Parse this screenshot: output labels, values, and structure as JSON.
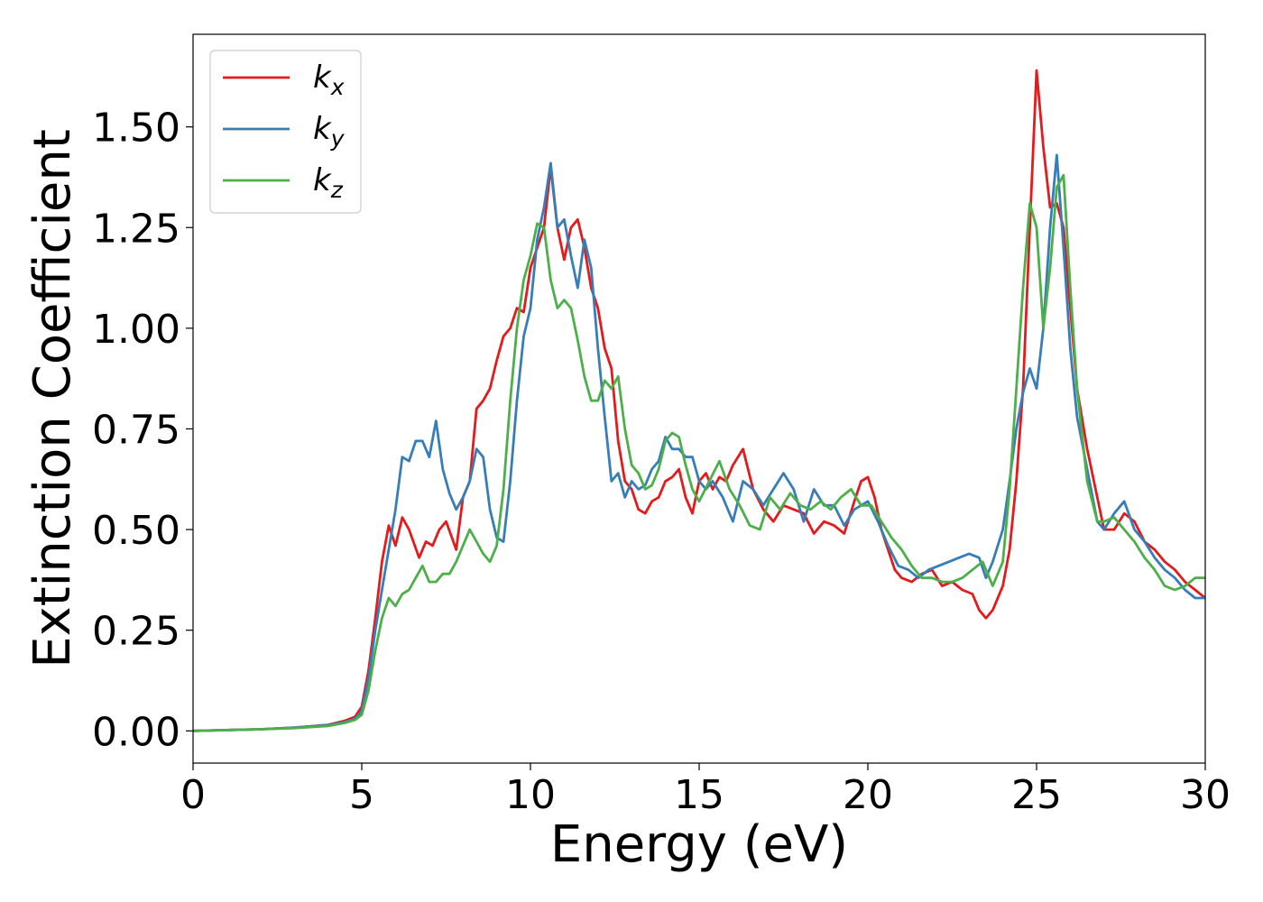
{
  "chart_data": {
    "type": "line",
    "xlabel": "Energy (eV)",
    "ylabel": "Extinction Coefficient",
    "xlim": [
      0,
      30
    ],
    "ylim": [
      -0.08,
      1.73
    ],
    "xticks": [
      0,
      5,
      10,
      15,
      20,
      25,
      30
    ],
    "xtick_labels": [
      "0",
      "5",
      "10",
      "15",
      "20",
      "25",
      "30"
    ],
    "yticks": [
      0.0,
      0.25,
      0.5,
      0.75,
      1.0,
      1.25,
      1.5
    ],
    "ytick_labels": [
      "0.00",
      "0.25",
      "0.50",
      "0.75",
      "1.00",
      "1.25",
      "1.50"
    ],
    "grid": false,
    "legend_position": "top-left",
    "series": [
      {
        "name": "k",
        "subscript": "x",
        "color": "#e41a1c",
        "x": [
          0,
          1,
          2,
          3,
          4,
          4.5,
          4.8,
          5.0,
          5.2,
          5.4,
          5.6,
          5.8,
          6.0,
          6.2,
          6.4,
          6.7,
          6.9,
          7.1,
          7.3,
          7.5,
          7.8,
          8.0,
          8.2,
          8.4,
          8.6,
          8.8,
          9.0,
          9.2,
          9.4,
          9.6,
          9.8,
          10.0,
          10.2,
          10.4,
          10.6,
          10.8,
          11.0,
          11.2,
          11.4,
          11.6,
          11.8,
          12.0,
          12.2,
          12.4,
          12.6,
          12.8,
          13.0,
          13.2,
          13.4,
          13.6,
          13.8,
          14.0,
          14.2,
          14.4,
          14.6,
          14.8,
          15.0,
          15.2,
          15.4,
          15.6,
          15.8,
          16.0,
          16.3,
          16.6,
          16.9,
          17.2,
          17.5,
          17.8,
          18.1,
          18.4,
          18.7,
          19.0,
          19.3,
          19.6,
          19.8,
          20.0,
          20.2,
          20.4,
          20.6,
          20.8,
          21.0,
          21.3,
          21.6,
          21.9,
          22.2,
          22.5,
          22.8,
          23.1,
          23.3,
          23.5,
          23.7,
          24.0,
          24.2,
          24.4,
          24.6,
          24.8,
          25.0,
          25.2,
          25.4,
          25.6,
          25.8,
          26.0,
          26.2,
          26.5,
          26.8,
          27.0,
          27.3,
          27.6,
          27.9,
          28.2,
          28.5,
          28.8,
          29.1,
          29.4,
          29.7,
          30.0
        ],
        "values": [
          0.0,
          0.002,
          0.004,
          0.008,
          0.015,
          0.025,
          0.035,
          0.06,
          0.15,
          0.28,
          0.42,
          0.51,
          0.46,
          0.53,
          0.5,
          0.43,
          0.47,
          0.46,
          0.5,
          0.52,
          0.45,
          0.58,
          0.62,
          0.8,
          0.82,
          0.85,
          0.92,
          0.98,
          1.0,
          1.05,
          1.04,
          1.15,
          1.2,
          1.25,
          1.4,
          1.25,
          1.17,
          1.25,
          1.27,
          1.2,
          1.1,
          1.05,
          0.95,
          0.9,
          0.72,
          0.62,
          0.6,
          0.55,
          0.54,
          0.57,
          0.58,
          0.62,
          0.63,
          0.65,
          0.58,
          0.54,
          0.62,
          0.64,
          0.6,
          0.63,
          0.62,
          0.66,
          0.7,
          0.6,
          0.55,
          0.52,
          0.56,
          0.55,
          0.54,
          0.49,
          0.52,
          0.51,
          0.49,
          0.57,
          0.62,
          0.63,
          0.58,
          0.5,
          0.45,
          0.4,
          0.38,
          0.37,
          0.39,
          0.4,
          0.36,
          0.37,
          0.35,
          0.34,
          0.3,
          0.28,
          0.3,
          0.36,
          0.45,
          0.62,
          0.85,
          1.25,
          1.64,
          1.45,
          1.3,
          1.31,
          1.25,
          1.05,
          0.85,
          0.7,
          0.58,
          0.5,
          0.5,
          0.54,
          0.52,
          0.47,
          0.45,
          0.42,
          0.4,
          0.37,
          0.35,
          0.33
        ]
      },
      {
        "name": "k",
        "subscript": "y",
        "color": "#377eb8",
        "x": [
          0,
          1,
          2,
          3,
          4,
          4.5,
          4.8,
          5.0,
          5.2,
          5.4,
          5.6,
          5.8,
          6.0,
          6.2,
          6.4,
          6.6,
          6.8,
          7.0,
          7.2,
          7.4,
          7.6,
          7.8,
          8.0,
          8.2,
          8.4,
          8.6,
          8.8,
          9.0,
          9.2,
          9.4,
          9.6,
          9.8,
          10.0,
          10.2,
          10.4,
          10.6,
          10.8,
          11.0,
          11.2,
          11.4,
          11.6,
          11.8,
          12.0,
          12.2,
          12.4,
          12.6,
          12.8,
          13.0,
          13.2,
          13.4,
          13.6,
          13.8,
          14.0,
          14.2,
          14.4,
          14.6,
          14.8,
          15.0,
          15.2,
          15.4,
          15.7,
          16.0,
          16.3,
          16.6,
          16.9,
          17.2,
          17.5,
          17.8,
          18.1,
          18.4,
          18.7,
          19.0,
          19.3,
          19.6,
          20.0,
          20.3,
          20.6,
          20.9,
          21.2,
          21.5,
          21.8,
          22.1,
          22.4,
          22.7,
          23.0,
          23.3,
          23.5,
          23.7,
          24.0,
          24.2,
          24.4,
          24.6,
          24.8,
          25.0,
          25.2,
          25.4,
          25.6,
          25.8,
          26.0,
          26.2,
          26.5,
          26.8,
          27.0,
          27.3,
          27.6,
          27.9,
          28.2,
          28.5,
          28.8,
          29.1,
          29.4,
          29.7,
          30.0
        ],
        "values": [
          0.0,
          0.002,
          0.004,
          0.008,
          0.014,
          0.022,
          0.03,
          0.05,
          0.13,
          0.25,
          0.35,
          0.45,
          0.55,
          0.68,
          0.67,
          0.72,
          0.72,
          0.68,
          0.77,
          0.65,
          0.59,
          0.55,
          0.58,
          0.62,
          0.7,
          0.68,
          0.55,
          0.48,
          0.47,
          0.62,
          0.82,
          0.98,
          1.05,
          1.22,
          1.3,
          1.41,
          1.25,
          1.27,
          1.18,
          1.1,
          1.22,
          1.15,
          0.95,
          0.78,
          0.62,
          0.64,
          0.58,
          0.62,
          0.6,
          0.61,
          0.65,
          0.67,
          0.73,
          0.7,
          0.7,
          0.68,
          0.68,
          0.62,
          0.6,
          0.62,
          0.58,
          0.52,
          0.62,
          0.6,
          0.56,
          0.6,
          0.64,
          0.6,
          0.52,
          0.6,
          0.56,
          0.56,
          0.51,
          0.55,
          0.57,
          0.52,
          0.46,
          0.41,
          0.4,
          0.38,
          0.4,
          0.41,
          0.42,
          0.43,
          0.44,
          0.43,
          0.38,
          0.42,
          0.5,
          0.62,
          0.75,
          0.84,
          0.9,
          0.85,
          1.0,
          1.25,
          1.43,
          1.2,
          0.95,
          0.78,
          0.65,
          0.52,
          0.5,
          0.54,
          0.57,
          0.5,
          0.47,
          0.43,
          0.4,
          0.38,
          0.35,
          0.33,
          0.33
        ]
      },
      {
        "name": "k",
        "subscript": "z",
        "color": "#4daf4a",
        "x": [
          0,
          1,
          2,
          3,
          4,
          4.5,
          4.8,
          5.0,
          5.2,
          5.4,
          5.6,
          5.8,
          6.0,
          6.2,
          6.4,
          6.6,
          6.8,
          7.0,
          7.2,
          7.4,
          7.6,
          7.8,
          8.0,
          8.2,
          8.4,
          8.6,
          8.8,
          9.0,
          9.2,
          9.4,
          9.6,
          9.8,
          10.0,
          10.2,
          10.4,
          10.6,
          10.8,
          11.0,
          11.2,
          11.4,
          11.6,
          11.8,
          12.0,
          12.2,
          12.4,
          12.6,
          12.8,
          13.0,
          13.2,
          13.4,
          13.6,
          13.8,
          14.0,
          14.2,
          14.4,
          14.6,
          14.8,
          15.0,
          15.3,
          15.6,
          15.9,
          16.2,
          16.5,
          16.8,
          17.1,
          17.4,
          17.7,
          18.0,
          18.3,
          18.6,
          18.9,
          19.2,
          19.5,
          19.8,
          20.1,
          20.4,
          20.7,
          21.0,
          21.3,
          21.6,
          21.9,
          22.2,
          22.5,
          22.8,
          23.1,
          23.4,
          23.7,
          24.0,
          24.2,
          24.4,
          24.6,
          24.8,
          25.0,
          25.2,
          25.4,
          25.6,
          25.8,
          26.0,
          26.2,
          26.5,
          26.8,
          27.0,
          27.3,
          27.6,
          27.9,
          28.2,
          28.5,
          28.8,
          29.1,
          29.4,
          29.7,
          30.0
        ],
        "values": [
          0.0,
          0.002,
          0.004,
          0.007,
          0.012,
          0.02,
          0.027,
          0.04,
          0.1,
          0.2,
          0.28,
          0.33,
          0.31,
          0.34,
          0.35,
          0.38,
          0.41,
          0.37,
          0.37,
          0.39,
          0.39,
          0.42,
          0.46,
          0.5,
          0.47,
          0.44,
          0.42,
          0.46,
          0.6,
          0.82,
          1.0,
          1.12,
          1.18,
          1.26,
          1.25,
          1.12,
          1.05,
          1.07,
          1.05,
          0.97,
          0.88,
          0.82,
          0.82,
          0.87,
          0.85,
          0.88,
          0.75,
          0.66,
          0.64,
          0.6,
          0.61,
          0.65,
          0.72,
          0.74,
          0.73,
          0.66,
          0.6,
          0.57,
          0.62,
          0.67,
          0.6,
          0.56,
          0.51,
          0.5,
          0.58,
          0.55,
          0.59,
          0.56,
          0.55,
          0.57,
          0.55,
          0.58,
          0.6,
          0.56,
          0.56,
          0.52,
          0.48,
          0.45,
          0.41,
          0.38,
          0.38,
          0.37,
          0.37,
          0.38,
          0.4,
          0.42,
          0.36,
          0.42,
          0.6,
          0.85,
          1.1,
          1.31,
          1.25,
          1.0,
          1.15,
          1.35,
          1.38,
          1.1,
          0.85,
          0.62,
          0.52,
          0.52,
          0.53,
          0.5,
          0.47,
          0.43,
          0.4,
          0.36,
          0.35,
          0.36,
          0.38,
          0.38
        ]
      }
    ]
  }
}
